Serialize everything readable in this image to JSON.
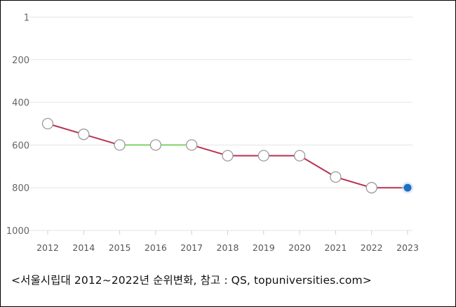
{
  "caption": "<서울시립대 2012~2022년 순위변화, 참고 : QS, topuniversities.com>",
  "chart_data": {
    "type": "line",
    "x": [
      "2012",
      "2014",
      "2015",
      "2016",
      "2017",
      "2018",
      "2019",
      "2020",
      "2021",
      "2022",
      "2023"
    ],
    "series": [
      {
        "values": [
          500,
          550,
          600,
          600,
          600,
          650,
          650,
          650,
          750,
          800,
          800
        ]
      }
    ],
    "yticks": [
      1,
      200,
      400,
      600,
      800,
      1000
    ],
    "ylim": [
      1,
      1000
    ],
    "y_inverted": true,
    "grid": true,
    "line_color": "#b83253",
    "flat_segment_color": "#7ed26b",
    "marker_fill": "#ffffff",
    "marker_stroke": "#9a9a9a",
    "highlight_marker_color": "#1f6fc4"
  }
}
